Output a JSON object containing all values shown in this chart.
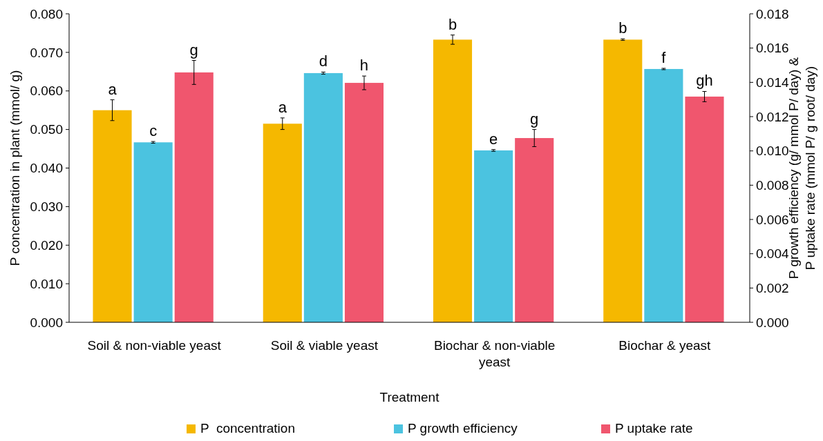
{
  "chart_data": {
    "type": "bar",
    "xlabel": "Treatment",
    "ylabel": "P concentration in plant (mmol/ g)",
    "y2label": "P growth efficiency (g/ mmol P/ day) &\nP uptake rate (mmol P/ g root/ day)",
    "categories": [
      "Soil & non-viable yeast",
      "Soil & viable yeast",
      "Biochar & non-viable yeast",
      "Biochar & yeast"
    ],
    "series": [
      {
        "name": "P  concentration",
        "color": "#f5b800",
        "values": [
          0.055,
          0.0515,
          0.0733,
          0.0733
        ],
        "value_labels": [
          "a",
          "a",
          "b",
          "b"
        ],
        "errors": [
          0.0027,
          0.0015,
          0.0012,
          0.0002
        ]
      },
      {
        "name": "P growth efficiency",
        "color": "#4bc3e0",
        "axis": "y2",
        "values": [
          0.0105,
          0.01454,
          0.01003,
          0.01478
        ],
        "value_labels": [
          "c",
          "d",
          "e",
          "f"
        ],
        "errors": [
          5e-05,
          6e-05,
          5e-05,
          4e-05
        ]
      },
      {
        "name": "P uptake rate",
        "color": "#f0566e",
        "axis": "y2",
        "values": [
          0.01458,
          0.01397,
          0.01075,
          0.01317
        ],
        "value_labels": [
          "g",
          "h",
          "g",
          "gh"
        ],
        "errors": [
          0.0007,
          0.0004,
          0.0005,
          0.0003
        ]
      }
    ],
    "ylim": [
      0,
      0.08
    ],
    "yticks": [
      {
        "value": 0,
        "label": "0.000"
      },
      {
        "value": 0.01,
        "label": "0.010"
      },
      {
        "value": 0.02,
        "label": "0.020"
      },
      {
        "value": 0.03,
        "label": "0.030"
      },
      {
        "value": 0.04,
        "label": "0.040"
      },
      {
        "value": 0.05,
        "label": "0.050"
      },
      {
        "value": 0.06,
        "label": "0.060"
      },
      {
        "value": 0.07,
        "label": "0.070"
      },
      {
        "value": 0.08,
        "label": "0.080"
      }
    ],
    "y2lim": [
      0,
      0.018
    ],
    "y2ticks": [
      {
        "value": 0,
        "label": "0.000"
      },
      {
        "value": 0.002,
        "label": "0.002"
      },
      {
        "value": 0.004,
        "label": "0.004"
      },
      {
        "value": 0.006,
        "label": "0.006"
      },
      {
        "value": 0.008,
        "label": "0.008"
      },
      {
        "value": 0.01,
        "label": "0.010"
      },
      {
        "value": 0.012,
        "label": "0.012"
      },
      {
        "value": 0.014,
        "label": "0.014"
      },
      {
        "value": 0.016,
        "label": "0.016"
      },
      {
        "value": 0.018,
        "label": "0.018"
      }
    ],
    "grid": false,
    "legend": "bottom"
  }
}
